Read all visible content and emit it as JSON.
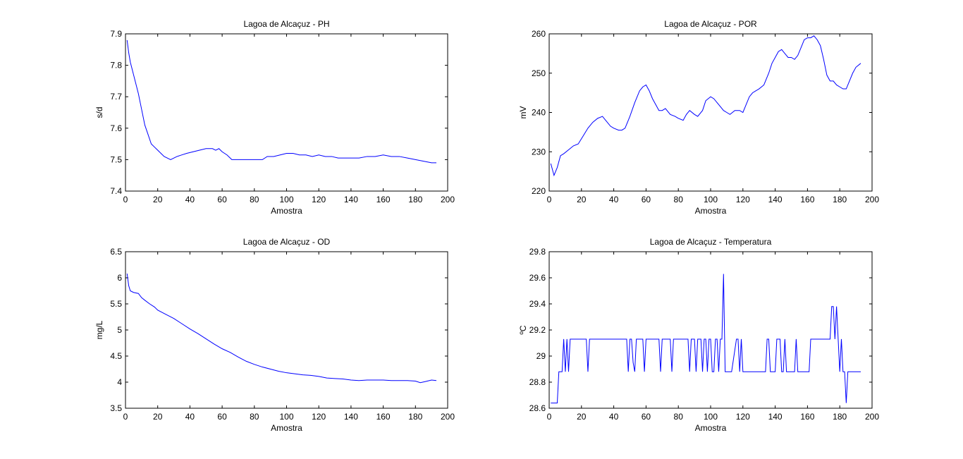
{
  "chart_data": [
    {
      "type": "line",
      "title": "Lagoa de Alcaçuz - PH",
      "xlabel": "Amostra",
      "ylabel": "s/d",
      "xlim": [
        0,
        200
      ],
      "ylim": [
        7.4,
        7.9
      ],
      "xticks": [
        "0",
        "20",
        "40",
        "60",
        "80",
        "100",
        "120",
        "140",
        "160",
        "180",
        "200"
      ],
      "yticks": [
        "7.4",
        "7.5",
        "7.6",
        "7.7",
        "7.8",
        "7.9"
      ],
      "grid": false,
      "color": "#0000ff",
      "series": [
        {
          "x": [
            1,
            2,
            3,
            4,
            6,
            8,
            10,
            12,
            14,
            16,
            18,
            20,
            22,
            24,
            26,
            28,
            30,
            32,
            35,
            38,
            42,
            46,
            50,
            54,
            56,
            58,
            60,
            63,
            66,
            70,
            75,
            80,
            85,
            88,
            92,
            96,
            100,
            104,
            108,
            112,
            116,
            120,
            124,
            128,
            132,
            136,
            140,
            145,
            150,
            155,
            160,
            165,
            170,
            175,
            180,
            185,
            190,
            193
          ],
          "y": [
            7.88,
            7.84,
            7.81,
            7.79,
            7.75,
            7.71,
            7.66,
            7.61,
            7.58,
            7.55,
            7.54,
            7.53,
            7.52,
            7.51,
            7.505,
            7.5,
            7.505,
            7.51,
            7.515,
            7.52,
            7.525,
            7.53,
            7.535,
            7.535,
            7.53,
            7.535,
            7.525,
            7.515,
            7.5,
            7.5,
            7.5,
            7.5,
            7.5,
            7.51,
            7.51,
            7.515,
            7.52,
            7.52,
            7.515,
            7.515,
            7.51,
            7.515,
            7.51,
            7.51,
            7.505,
            7.505,
            7.505,
            7.505,
            7.51,
            7.51,
            7.515,
            7.51,
            7.51,
            7.505,
            7.5,
            7.495,
            7.49,
            7.49
          ]
        }
      ]
    },
    {
      "type": "line",
      "title": "Lagoa de Alcaçuz - POR",
      "xlabel": "Amostra",
      "ylabel": "mV",
      "xlim": [
        0,
        200
      ],
      "ylim": [
        220,
        260
      ],
      "xticks": [
        "0",
        "20",
        "40",
        "60",
        "80",
        "100",
        "120",
        "140",
        "160",
        "180",
        "200"
      ],
      "yticks": [
        "220",
        "230",
        "240",
        "250",
        "260"
      ],
      "grid": false,
      "color": "#0000ff",
      "series": [
        {
          "x": [
            1,
            3,
            5,
            7,
            9,
            12,
            15,
            18,
            21,
            24,
            27,
            30,
            33,
            35,
            38,
            40,
            43,
            45,
            47,
            50,
            53,
            56,
            58,
            60,
            62,
            64,
            66,
            68,
            70,
            72,
            75,
            78,
            80,
            83,
            85,
            87,
            90,
            92,
            95,
            97,
            100,
            102,
            105,
            108,
            110,
            112,
            115,
            118,
            120,
            122,
            124,
            126,
            128,
            130,
            133,
            136,
            138,
            140,
            142,
            144,
            146,
            148,
            150,
            152,
            154,
            156,
            158,
            160,
            162,
            164,
            166,
            168,
            170,
            172,
            174,
            176,
            178,
            180,
            182,
            184,
            186,
            188,
            190,
            193
          ],
          "y": [
            227,
            224,
            226,
            229,
            229.5,
            230.5,
            231.5,
            232,
            234,
            236,
            237.5,
            238.5,
            239,
            238,
            236.5,
            236,
            235.5,
            235.5,
            236,
            239,
            242.5,
            245.5,
            246.5,
            247,
            245.5,
            243.5,
            242,
            240.5,
            240.5,
            241,
            239.5,
            239,
            238.5,
            238,
            239.5,
            240.5,
            239.5,
            239,
            240.5,
            243,
            244,
            243.5,
            242,
            240.5,
            240,
            239.5,
            240.5,
            240.5,
            240,
            242,
            244,
            245,
            245.5,
            246,
            247,
            250,
            252.5,
            254,
            255.5,
            256,
            255,
            254,
            254,
            253.5,
            254.5,
            256.5,
            258.5,
            259,
            259,
            259.5,
            258.5,
            257,
            253.5,
            249.5,
            248,
            248,
            247,
            246.5,
            246,
            246,
            248,
            250,
            251.5,
            252.5
          ]
        }
      ]
    },
    {
      "type": "line",
      "title": "Lagoa de Alcaçuz - OD",
      "xlabel": "Amostra",
      "ylabel": "mg/L",
      "xlim": [
        0,
        200
      ],
      "ylim": [
        3.5,
        6.5
      ],
      "xticks": [
        "0",
        "20",
        "40",
        "60",
        "80",
        "100",
        "120",
        "140",
        "160",
        "180",
        "200"
      ],
      "yticks": [
        "3.5",
        "4",
        "4.5",
        "5",
        "5.5",
        "6",
        "6.5"
      ],
      "grid": false,
      "color": "#0000ff",
      "series": [
        {
          "x": [
            1,
            2,
            3,
            5,
            8,
            10,
            12,
            15,
            18,
            20,
            25,
            30,
            35,
            40,
            45,
            50,
            55,
            60,
            65,
            70,
            75,
            80,
            85,
            90,
            95,
            100,
            105,
            110,
            115,
            120,
            125,
            130,
            135,
            140,
            145,
            150,
            155,
            160,
            165,
            170,
            175,
            180,
            183,
            186,
            190,
            193
          ],
          "y": [
            6.08,
            5.85,
            5.75,
            5.72,
            5.7,
            5.62,
            5.57,
            5.5,
            5.44,
            5.38,
            5.3,
            5.22,
            5.12,
            5.02,
            4.93,
            4.83,
            4.73,
            4.64,
            4.57,
            4.48,
            4.4,
            4.34,
            4.29,
            4.25,
            4.21,
            4.18,
            4.16,
            4.14,
            4.13,
            4.11,
            4.08,
            4.07,
            4.06,
            4.04,
            4.03,
            4.04,
            4.04,
            4.04,
            4.03,
            4.03,
            4.03,
            4.02,
            3.99,
            4.01,
            4.04,
            4.03
          ]
        }
      ]
    },
    {
      "type": "line",
      "title": "Lagoa de Alcaçuz - Temperatura",
      "xlabel": "Amostra",
      "ylabel": "ºC",
      "xlim": [
        0,
        200
      ],
      "ylim": [
        28.6,
        29.8
      ],
      "xticks": [
        "0",
        "20",
        "40",
        "60",
        "80",
        "100",
        "120",
        "140",
        "160",
        "180",
        "200"
      ],
      "yticks": [
        "28.6",
        "28.8",
        "29",
        "29.2",
        "29.4",
        "29.6",
        "29.8"
      ],
      "grid": false,
      "color": "#0000ff",
      "series": [
        {
          "x": [
            1,
            5,
            6,
            8,
            9,
            10,
            11,
            12,
            13,
            14,
            15,
            23,
            24,
            25,
            48,
            49,
            50,
            51,
            52,
            53,
            54,
            55,
            58,
            59,
            60,
            61,
            62,
            63,
            68,
            69,
            70,
            71,
            72,
            73,
            75,
            76,
            77,
            78,
            79,
            80,
            86,
            87,
            88,
            89,
            90,
            91,
            92,
            93,
            94,
            95,
            96,
            97,
            98,
            99,
            100,
            101,
            102,
            103,
            104,
            105,
            106,
            107,
            108,
            109,
            110,
            111,
            112,
            113,
            116,
            117,
            118,
            119,
            120,
            134,
            135,
            136,
            137,
            140,
            141,
            142,
            143,
            144,
            145,
            146,
            147,
            152,
            153,
            154,
            161,
            162,
            174,
            175,
            176,
            177,
            178,
            179,
            180,
            181,
            182,
            183,
            184,
            185,
            193
          ],
          "y": [
            28.64,
            28.64,
            28.88,
            28.88,
            29.13,
            28.88,
            29.13,
            28.88,
            29.13,
            29.13,
            29.13,
            29.13,
            28.88,
            29.13,
            29.13,
            28.88,
            29.13,
            29.13,
            28.95,
            28.88,
            29.13,
            29.13,
            29.13,
            28.88,
            29.13,
            29.13,
            29.13,
            29.13,
            29.13,
            28.88,
            29.13,
            29.13,
            29.13,
            29.13,
            29.13,
            28.88,
            29.13,
            29.13,
            29.13,
            29.13,
            29.13,
            28.88,
            29.13,
            29.13,
            29.13,
            28.88,
            29.13,
            29.13,
            29.13,
            28.88,
            29.13,
            29.13,
            28.88,
            29.13,
            29.13,
            28.88,
            28.88,
            29.13,
            29.13,
            28.88,
            29.13,
            29.13,
            29.63,
            28.88,
            28.88,
            28.88,
            28.88,
            28.88,
            29.13,
            29.13,
            28.88,
            29.13,
            28.88,
            28.88,
            29.13,
            29.13,
            28.88,
            28.88,
            29.13,
            29.13,
            29.13,
            28.88,
            28.88,
            29.13,
            28.88,
            28.88,
            29.13,
            28.88,
            28.88,
            29.13,
            29.13,
            29.38,
            29.38,
            29.13,
            29.38,
            29.13,
            28.88,
            29.13,
            28.88,
            28.88,
            28.64,
            28.88,
            28.88
          ]
        }
      ]
    }
  ]
}
